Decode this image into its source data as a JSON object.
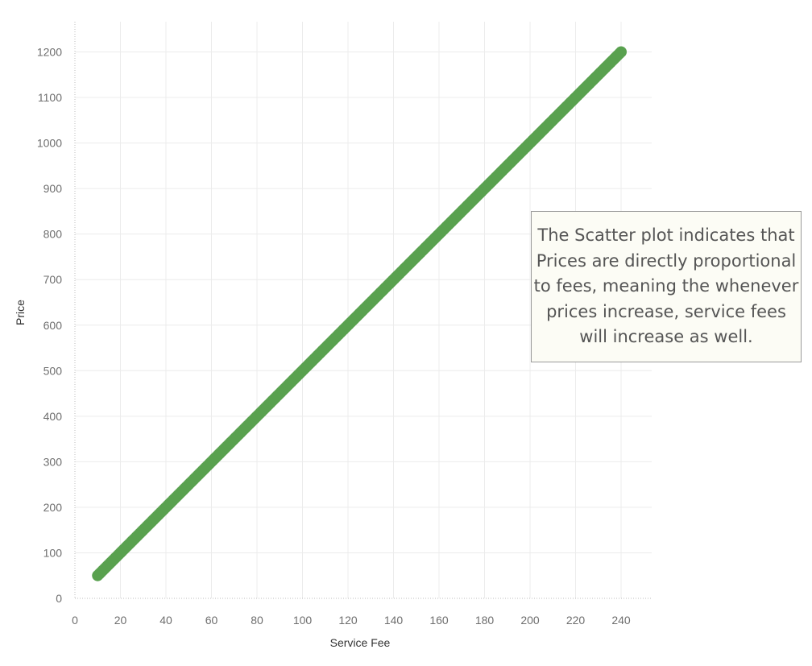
{
  "chart_data": {
    "type": "scatter",
    "title": "",
    "xlabel": "Service Fee",
    "ylabel": "Price",
    "xlim": [
      0,
      255
    ],
    "ylim": [
      0,
      1270
    ],
    "xticks": [
      0,
      20,
      40,
      60,
      80,
      100,
      120,
      140,
      160,
      180,
      200,
      220,
      240
    ],
    "yticks": [
      0,
      100,
      200,
      300,
      400,
      500,
      600,
      700,
      800,
      900,
      1000,
      1100,
      1200
    ],
    "grid": true,
    "series": [
      {
        "relation": "price = 5 × service fee",
        "x_range": [
          10,
          240
        ],
        "y_range": [
          50,
          1200
        ]
      }
    ],
    "marker_color": "#59a14f",
    "annotation": "The Scatter plot indicates that Prices are directly proportional to fees, meaning the whenever prices increase, service fees will increase as well."
  }
}
